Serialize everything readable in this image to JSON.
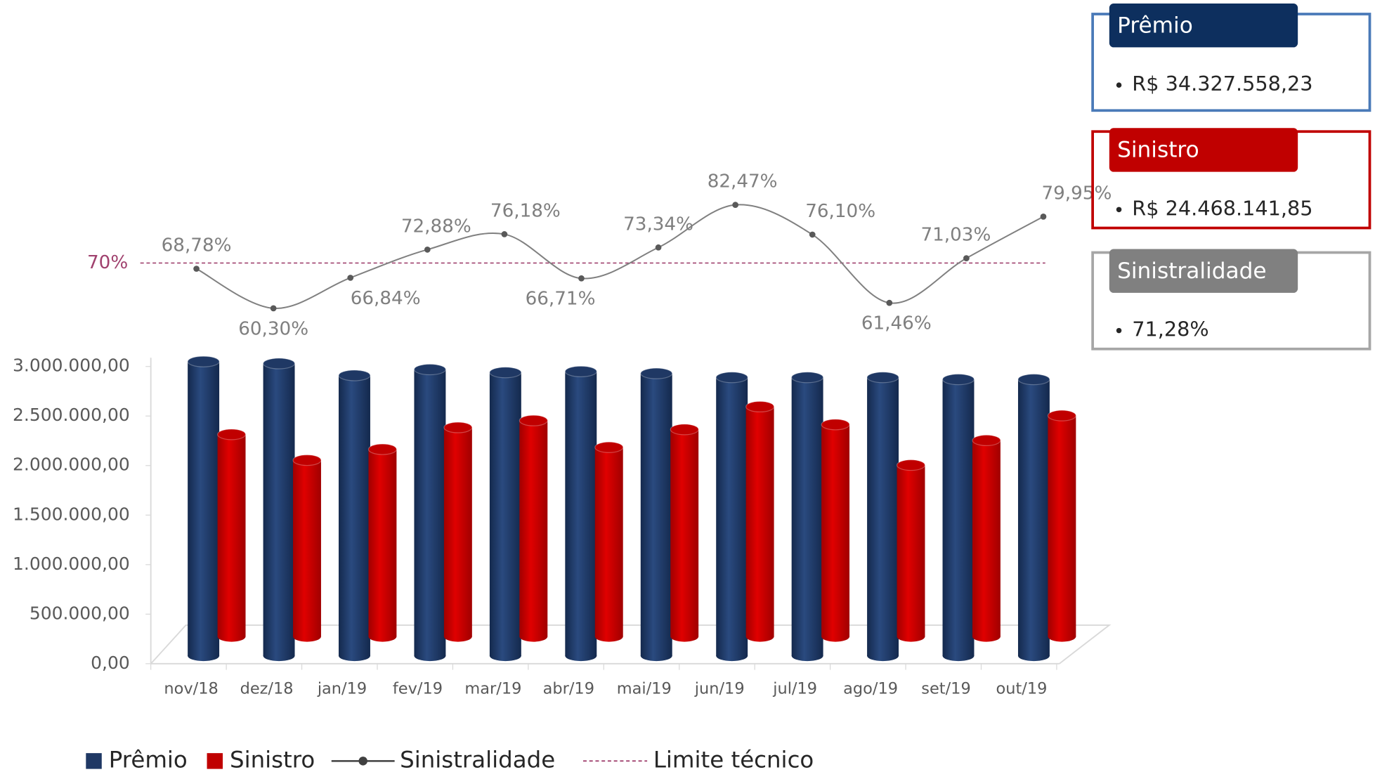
{
  "chart_data": {
    "type": "bar3d_line",
    "categories": [
      "nov/18",
      "dez/18",
      "jan/19",
      "fev/19",
      "mar/19",
      "abr/19",
      "mai/19",
      "jun/19",
      "jul/19",
      "ago/19",
      "set/19",
      "out/19"
    ],
    "series": [
      {
        "name": "Prêmio",
        "color": "#1f3864",
        "values": [
          2970000,
          2950000,
          2830000,
          2890000,
          2860000,
          2870000,
          2850000,
          2810000,
          2810000,
          2810000,
          2790000,
          2790000
        ]
      },
      {
        "name": "Sinistro",
        "color": "#c00000",
        "values": [
          2040000,
          1780000,
          1890000,
          2110000,
          2180000,
          1910000,
          2090000,
          2320000,
          2140000,
          1730000,
          1980000,
          2230000
        ]
      },
      {
        "name": "Sinistralidade",
        "color": "#7f7f7f",
        "type": "line",
        "values": [
          68.78,
          60.3,
          66.84,
          72.88,
          76.18,
          66.71,
          73.34,
          82.47,
          76.1,
          61.46,
          71.03,
          79.95
        ],
        "value_labels": [
          "68,78%",
          "60,30%",
          "66,84%",
          "72,88%",
          "76,18%",
          "66,71%",
          "73,34%",
          "82,47%",
          "76,10%",
          "61,46%",
          "71,03%",
          "79,95%"
        ]
      }
    ],
    "limit": {
      "name": "Limite técnico",
      "value": 70,
      "label": "70%",
      "color": "#a0416e"
    },
    "ylim": [
      0,
      3000000
    ],
    "yticks": [
      {
        "value": 0,
        "label": "0,00"
      },
      {
        "value": 500000,
        "label": "500.000,00"
      },
      {
        "value": 1000000,
        "label": "1.000.000,00"
      },
      {
        "value": 1500000,
        "label": "1.500.000,00"
      },
      {
        "value": 2000000,
        "label": "2.000.000,00"
      },
      {
        "value": 2500000,
        "label": "2.500.000,00"
      },
      {
        "value": 3000000,
        "label": "3.000.000,00"
      }
    ],
    "legend": "bottom"
  },
  "summary": [
    {
      "title": "Prêmio",
      "value": "R$ 34.327.558,23",
      "color": "#0d2f5e",
      "border": "#4a7ab8"
    },
    {
      "title": "Sinistro",
      "value": "R$ 24.468.141,85",
      "color": "#c00000",
      "border": "#c00000"
    },
    {
      "title": "Sinistralidade",
      "value": "71,28%",
      "color": "#808080",
      "border": "#a6a6a6"
    }
  ]
}
